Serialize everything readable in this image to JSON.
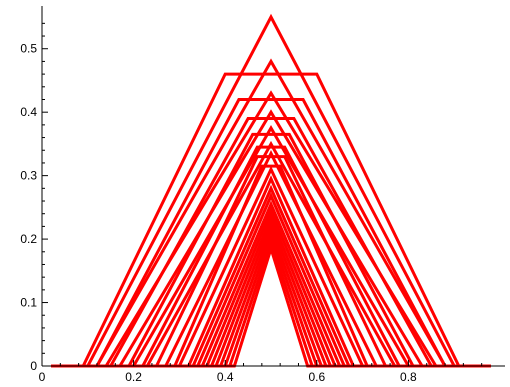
{
  "chart_data": {
    "type": "line",
    "title": "",
    "xlabel": "",
    "ylabel": "",
    "xlim": [
      0,
      1
    ],
    "ylim": [
      0,
      0.55
    ],
    "x_ticks": [
      0,
      0.2,
      0.4,
      0.6,
      0.8
    ],
    "x_tick_labels": [
      "0",
      "0.2",
      "0.4",
      "0.6",
      "0.8"
    ],
    "y_ticks": [
      0,
      0.1,
      0.2,
      0.3,
      0.4,
      0.5
    ],
    "y_tick_labels": [
      "0",
      "0.1",
      "0.2",
      "0.3",
      "0.4",
      "0.5"
    ],
    "grid": false,
    "legend": "none",
    "line_color": "#ff0000",
    "series": [
      {
        "x": [
          0.02,
          0.1,
          0.5,
          0.9,
          0.98
        ],
        "y": [
          0,
          0,
          0.55,
          0,
          0
        ]
      },
      {
        "x": [
          0.02,
          0.09,
          0.4,
          0.6,
          0.91,
          0.98
        ],
        "y": [
          0,
          0,
          0.46,
          0.46,
          0,
          0
        ]
      },
      {
        "x": [
          0.02,
          0.12,
          0.5,
          0.88,
          0.98
        ],
        "y": [
          0,
          0,
          0.48,
          0,
          0
        ]
      },
      {
        "x": [
          0.02,
          0.12,
          0.43,
          0.57,
          0.88,
          0.98
        ],
        "y": [
          0,
          0,
          0.42,
          0.42,
          0,
          0
        ]
      },
      {
        "x": [
          0.02,
          0.14,
          0.5,
          0.86,
          0.98
        ],
        "y": [
          0,
          0,
          0.43,
          0,
          0
        ]
      },
      {
        "x": [
          0.02,
          0.15,
          0.45,
          0.55,
          0.85,
          0.98
        ],
        "y": [
          0,
          0,
          0.39,
          0.39,
          0,
          0
        ]
      },
      {
        "x": [
          0.02,
          0.17,
          0.5,
          0.83,
          0.98
        ],
        "y": [
          0,
          0,
          0.4,
          0,
          0
        ]
      },
      {
        "x": [
          0.02,
          0.19,
          0.46,
          0.54,
          0.81,
          0.98
        ],
        "y": [
          0,
          0,
          0.365,
          0.365,
          0,
          0
        ]
      },
      {
        "x": [
          0.02,
          0.2,
          0.5,
          0.8,
          0.98
        ],
        "y": [
          0,
          0,
          0.375,
          0,
          0
        ]
      },
      {
        "x": [
          0.02,
          0.22,
          0.47,
          0.53,
          0.78,
          0.98
        ],
        "y": [
          0,
          0,
          0.345,
          0.345,
          0,
          0
        ]
      },
      {
        "x": [
          0.02,
          0.23,
          0.5,
          0.77,
          0.98
        ],
        "y": [
          0,
          0,
          0.35,
          0,
          0
        ]
      },
      {
        "x": [
          0.02,
          0.25,
          0.47,
          0.53,
          0.75,
          0.98
        ],
        "y": [
          0,
          0,
          0.33,
          0.33,
          0,
          0
        ]
      },
      {
        "x": [
          0.02,
          0.27,
          0.5,
          0.73,
          0.98
        ],
        "y": [
          0,
          0,
          0.335,
          0,
          0
        ]
      },
      {
        "x": [
          0.02,
          0.29,
          0.48,
          0.52,
          0.71,
          0.98
        ],
        "y": [
          0,
          0,
          0.315,
          0.315,
          0,
          0
        ]
      },
      {
        "x": [
          0.02,
          0.3,
          0.5,
          0.7,
          0.98
        ],
        "y": [
          0,
          0,
          0.31,
          0,
          0
        ]
      },
      {
        "x": [
          0.02,
          0.32,
          0.5,
          0.68,
          0.98
        ],
        "y": [
          0,
          0,
          0.295,
          0,
          0
        ]
      },
      {
        "x": [
          0.02,
          0.33,
          0.5,
          0.67,
          0.98
        ],
        "y": [
          0,
          0,
          0.28,
          0,
          0
        ]
      },
      {
        "x": [
          0.02,
          0.34,
          0.5,
          0.66,
          0.98
        ],
        "y": [
          0,
          0,
          0.268,
          0,
          0
        ]
      },
      {
        "x": [
          0.02,
          0.35,
          0.5,
          0.65,
          0.98
        ],
        "y": [
          0,
          0,
          0.255,
          0,
          0
        ]
      },
      {
        "x": [
          0.02,
          0.36,
          0.5,
          0.64,
          0.98
        ],
        "y": [
          0,
          0,
          0.245,
          0,
          0
        ]
      },
      {
        "x": [
          0.02,
          0.37,
          0.5,
          0.63,
          0.98
        ],
        "y": [
          0,
          0,
          0.235,
          0,
          0
        ]
      },
      {
        "x": [
          0.02,
          0.38,
          0.5,
          0.62,
          0.98
        ],
        "y": [
          0,
          0,
          0.225,
          0,
          0
        ]
      },
      {
        "x": [
          0.02,
          0.39,
          0.5,
          0.61,
          0.98
        ],
        "y": [
          0,
          0,
          0.215,
          0,
          0
        ]
      },
      {
        "x": [
          0.02,
          0.4,
          0.5,
          0.6,
          0.98
        ],
        "y": [
          0,
          0,
          0.205,
          0,
          0
        ]
      },
      {
        "x": [
          0.02,
          0.41,
          0.5,
          0.59,
          0.98
        ],
        "y": [
          0,
          0,
          0.195,
          0,
          0
        ]
      },
      {
        "x": [
          0.02,
          0.42,
          0.5,
          0.58,
          0.98
        ],
        "y": [
          0,
          0,
          0.185,
          0,
          0
        ]
      }
    ]
  }
}
